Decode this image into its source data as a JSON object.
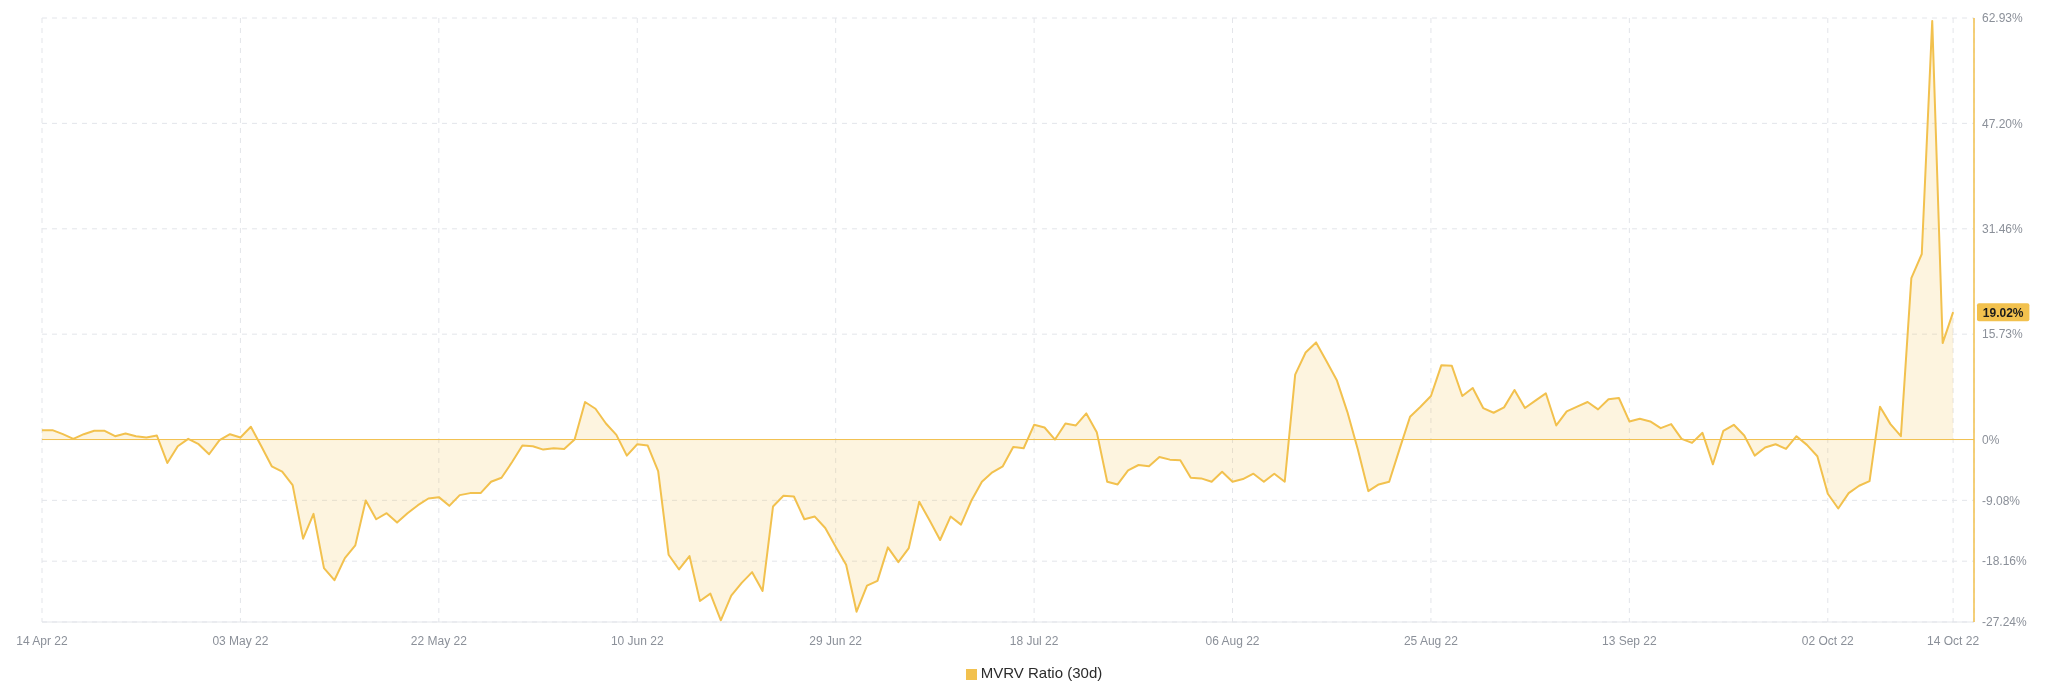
{
  "chart_data": {
    "type": "area",
    "x": [
      "2022-04-14",
      "2022-04-15",
      "2022-04-16",
      "2022-04-17",
      "2022-04-18",
      "2022-04-19",
      "2022-04-20",
      "2022-04-21",
      "2022-04-22",
      "2022-04-23",
      "2022-04-24",
      "2022-04-25",
      "2022-04-26",
      "2022-04-27",
      "2022-04-28",
      "2022-04-29",
      "2022-04-30",
      "2022-05-01",
      "2022-05-02",
      "2022-05-03",
      "2022-05-04",
      "2022-05-05",
      "2022-05-06",
      "2022-05-07",
      "2022-05-08",
      "2022-05-09",
      "2022-05-10",
      "2022-05-11",
      "2022-05-12",
      "2022-05-13",
      "2022-05-14",
      "2022-05-15",
      "2022-05-16",
      "2022-05-17",
      "2022-05-18",
      "2022-05-19",
      "2022-05-20",
      "2022-05-21",
      "2022-05-22",
      "2022-05-23",
      "2022-05-24",
      "2022-05-25",
      "2022-05-26",
      "2022-05-27",
      "2022-05-28",
      "2022-05-29",
      "2022-05-30",
      "2022-05-31",
      "2022-06-01",
      "2022-06-02",
      "2022-06-03",
      "2022-06-04",
      "2022-06-05",
      "2022-06-06",
      "2022-06-07",
      "2022-06-08",
      "2022-06-09",
      "2022-06-10",
      "2022-06-11",
      "2022-06-12",
      "2022-06-13",
      "2022-06-14",
      "2022-06-15",
      "2022-06-16",
      "2022-06-17",
      "2022-06-18",
      "2022-06-19",
      "2022-06-20",
      "2022-06-21",
      "2022-06-22",
      "2022-06-23",
      "2022-06-24",
      "2022-06-25",
      "2022-06-26",
      "2022-06-27",
      "2022-06-28",
      "2022-06-29",
      "2022-06-30",
      "2022-07-01",
      "2022-07-02",
      "2022-07-03",
      "2022-07-04",
      "2022-07-05",
      "2022-07-06",
      "2022-07-07",
      "2022-07-08",
      "2022-07-09",
      "2022-07-10",
      "2022-07-11",
      "2022-07-12",
      "2022-07-13",
      "2022-07-14",
      "2022-07-15",
      "2022-07-16",
      "2022-07-17",
      "2022-07-18",
      "2022-07-19",
      "2022-07-20",
      "2022-07-21",
      "2022-07-22",
      "2022-07-23",
      "2022-07-24",
      "2022-07-25",
      "2022-07-26",
      "2022-07-27",
      "2022-07-28",
      "2022-07-29",
      "2022-07-30",
      "2022-07-31",
      "2022-08-01",
      "2022-08-02",
      "2022-08-03",
      "2022-08-04",
      "2022-08-05",
      "2022-08-06",
      "2022-08-07",
      "2022-08-08",
      "2022-08-09",
      "2022-08-10",
      "2022-08-11",
      "2022-08-12",
      "2022-08-13",
      "2022-08-14",
      "2022-08-15",
      "2022-08-16",
      "2022-08-17",
      "2022-08-18",
      "2022-08-19",
      "2022-08-20",
      "2022-08-21",
      "2022-08-22",
      "2022-08-23",
      "2022-08-24",
      "2022-08-25",
      "2022-08-26",
      "2022-08-27",
      "2022-08-28",
      "2022-08-29",
      "2022-08-30",
      "2022-08-31",
      "2022-09-01",
      "2022-09-02",
      "2022-09-03",
      "2022-09-04",
      "2022-09-05",
      "2022-09-06",
      "2022-09-07",
      "2022-09-08",
      "2022-09-09",
      "2022-09-10",
      "2022-09-11",
      "2022-09-12",
      "2022-09-13",
      "2022-09-14",
      "2022-09-15",
      "2022-09-16",
      "2022-09-17",
      "2022-09-18",
      "2022-09-19",
      "2022-09-20",
      "2022-09-21",
      "2022-09-22",
      "2022-09-23",
      "2022-09-24",
      "2022-09-25",
      "2022-09-26",
      "2022-09-27",
      "2022-09-28",
      "2022-09-29",
      "2022-09-30",
      "2022-10-01",
      "2022-10-02",
      "2022-10-03",
      "2022-10-04",
      "2022-10-05",
      "2022-10-06",
      "2022-10-07",
      "2022-10-08",
      "2022-10-09",
      "2022-10-10",
      "2022-10-11",
      "2022-10-12",
      "2022-10-13",
      "2022-10-14"
    ],
    "series": [
      {
        "name": "MVRV Ratio (30d)",
        "color": "#f2c14e",
        "values": [
          1.4,
          1.4,
          0.8,
          0.1,
          0.8,
          1.3,
          1.3,
          0.5,
          0.9,
          0.5,
          0.3,
          0.6,
          -3.5,
          -1.0,
          0.1,
          -0.7,
          -2.2,
          -0.1,
          0.8,
          0.3,
          1.9,
          -1.0,
          -4.0,
          -4.8,
          -6.8,
          -14.8,
          -11.1,
          -19.2,
          -21.0,
          -17.7,
          -15.8,
          -9.1,
          -11.9,
          -11.0,
          -12.4,
          -11.0,
          -9.8,
          -8.8,
          -8.6,
          -9.9,
          -8.3,
          -8.0,
          -8.0,
          -6.3,
          -5.7,
          -3.4,
          -0.9,
          -1.0,
          -1.5,
          -1.3,
          -1.4,
          0.0,
          5.6,
          4.6,
          2.4,
          0.7,
          -2.4,
          -0.7,
          -0.9,
          -4.7,
          -17.2,
          -19.4,
          -17.4,
          -24.1,
          -23.0,
          -27.0,
          -23.3,
          -21.4,
          -19.8,
          -22.6,
          -10.0,
          -8.4,
          -8.5,
          -11.9,
          -11.5,
          -13.2,
          -16.0,
          -18.7,
          -25.7,
          -21.8,
          -21.1,
          -16.1,
          -18.3,
          -16.2,
          -9.3,
          -12.1,
          -15.0,
          -11.5,
          -12.7,
          -9.1,
          -6.3,
          -4.9,
          -4.0,
          -1.1,
          -1.3,
          2.2,
          1.8,
          0.0,
          2.4,
          2.1,
          3.9,
          1.1,
          -6.3,
          -6.7,
          -4.6,
          -3.8,
          -4.0,
          -2.6,
          -3.0,
          -3.1,
          -5.7,
          -5.8,
          -6.3,
          -4.8,
          -6.3,
          -5.9,
          -5.1,
          -6.3,
          -5.1,
          -6.3,
          9.7,
          13.0,
          14.5,
          11.7,
          8.8,
          4.1,
          -1.5,
          -7.7,
          -6.7,
          -6.3,
          -1.4,
          3.4,
          4.9,
          6.5,
          11.1,
          11.0,
          6.5,
          7.7,
          4.7,
          4.0,
          4.8,
          7.4,
          4.7,
          5.8,
          6.9,
          2.1,
          4.2,
          4.9,
          5.6,
          4.5,
          6.0,
          6.2,
          2.7,
          3.1,
          2.7,
          1.7,
          2.3,
          0.1,
          -0.5,
          1.0,
          -3.7,
          1.3,
          2.2,
          0.6,
          -2.4,
          -1.2,
          -0.7,
          -1.4,
          0.5,
          -0.8,
          -2.5,
          -8.1,
          -10.3,
          -8.0,
          -6.9,
          -6.2,
          4.9,
          2.3,
          0.5,
          24.1,
          27.7,
          62.5,
          14.4,
          19.02
        ]
      }
    ],
    "xlim": [
      "2022-04-14",
      "2022-10-16"
    ],
    "xticks": [
      {
        "value": "2022-04-14",
        "label": "14 Apr 22"
      },
      {
        "value": "2022-05-03",
        "label": "03 May 22"
      },
      {
        "value": "2022-05-22",
        "label": "22 May 22"
      },
      {
        "value": "2022-06-10",
        "label": "10 Jun 22"
      },
      {
        "value": "2022-06-29",
        "label": "29 Jun 22"
      },
      {
        "value": "2022-07-18",
        "label": "18 Jul 22"
      },
      {
        "value": "2022-08-06",
        "label": "06 Aug 22"
      },
      {
        "value": "2022-08-25",
        "label": "25 Aug 22"
      },
      {
        "value": "2022-09-13",
        "label": "13 Sep 22"
      },
      {
        "value": "2022-10-02",
        "label": "02 Oct 22"
      },
      {
        "value": "2022-10-14",
        "label": "14 Oct 22"
      }
    ],
    "ylim": [
      -27.24,
      62.93
    ],
    "yticks": [
      {
        "value": -27.24,
        "label": "-27.24%"
      },
      {
        "value": -18.16,
        "label": "-18.16%"
      },
      {
        "value": -9.08,
        "label": "-9.08%"
      },
      {
        "value": 0,
        "label": "0%"
      },
      {
        "value": 15.73,
        "label": "15.73%"
      },
      {
        "value": 31.46,
        "label": "31.46%"
      },
      {
        "value": 47.2,
        "label": "47.20%"
      },
      {
        "value": 62.93,
        "label": "62.93%"
      }
    ],
    "ref_lines": [
      {
        "axis": "y",
        "value": 0,
        "color": "#f2c14e"
      }
    ],
    "annotations": [
      {
        "text": "19.02%",
        "x": "2022-10-14",
        "y": 19.02
      }
    ],
    "grid": true,
    "legend": "bottom"
  }
}
